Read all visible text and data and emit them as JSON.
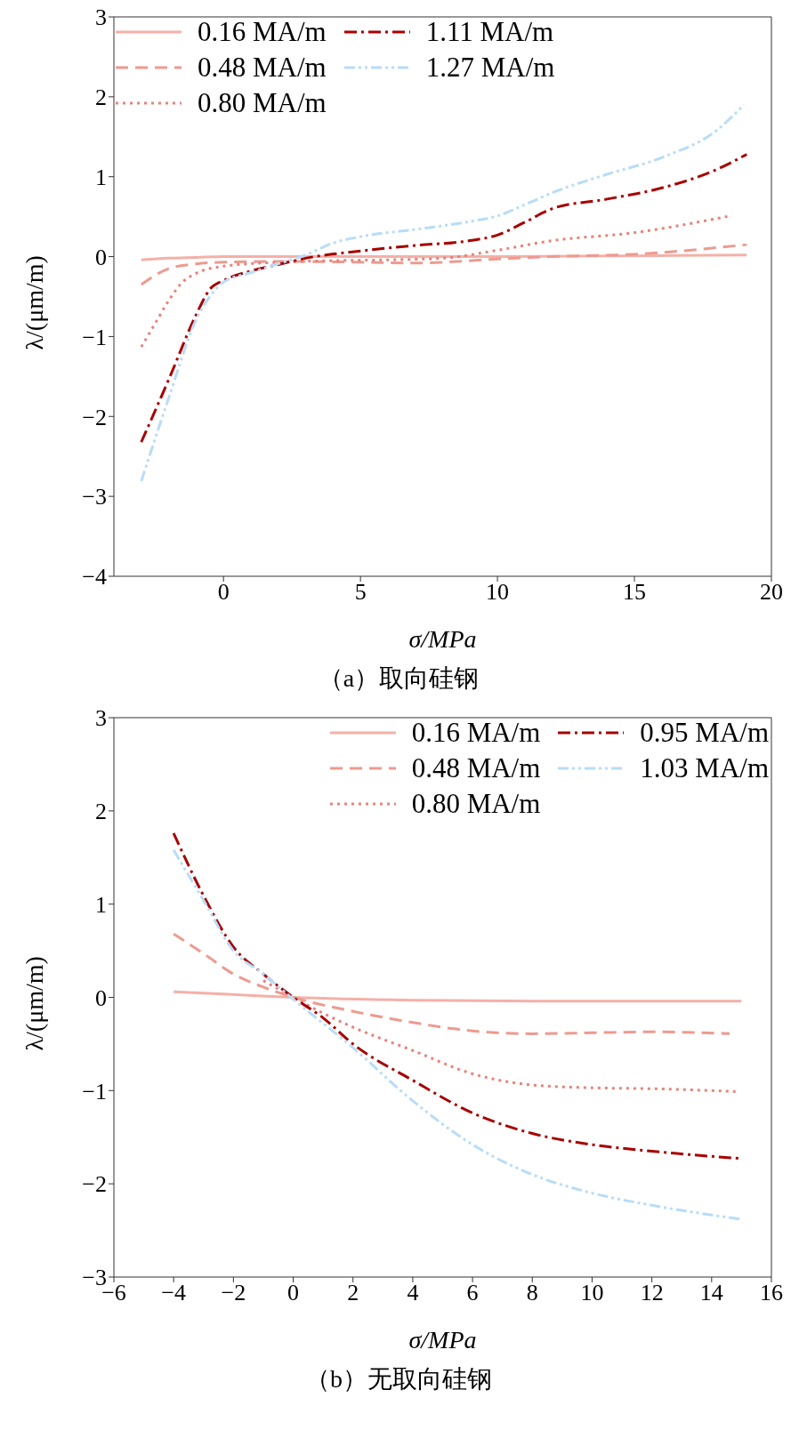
{
  "chart_data": [
    {
      "type": "line",
      "xlabel": "σ/MPa",
      "ylabel": "λ/(μm/m)",
      "annotations": [
        "（a）取向硅钢"
      ],
      "xlim": [
        -4,
        20
      ],
      "xticks": [
        0,
        5,
        10,
        15,
        20
      ],
      "ylim": [
        -4,
        3
      ],
      "yticks": [
        -4,
        -3,
        -2,
        -1,
        0,
        1,
        2,
        3
      ],
      "grid": false,
      "legend": "top left",
      "marker": "none",
      "series": [
        {
          "name": "0.16 MA/m",
          "color": "#f4b0a8",
          "line_style": "solid",
          "x": [
            -3,
            -2,
            -1,
            0,
            5,
            10,
            15,
            19.1
          ],
          "values": [
            -0.04,
            -0.02,
            -0.01,
            0,
            0,
            0,
            0.01,
            0.02
          ]
        },
        {
          "name": "0.48 MA/m",
          "color": "#ee9a90",
          "line_style": "dashed",
          "x": [
            -3,
            -2,
            -1,
            0,
            2,
            5,
            7,
            10,
            12,
            15,
            19.1
          ],
          "values": [
            -0.35,
            -0.15,
            -0.09,
            -0.07,
            -0.06,
            -0.07,
            -0.08,
            -0.03,
            0,
            0.03,
            0.15
          ]
        },
        {
          "name": "0.80 MA/m",
          "color": "#e8837a",
          "line_style": "dotted",
          "x": [
            -3,
            -2.5,
            -2,
            -1.5,
            -1,
            0,
            2,
            4,
            6,
            8,
            10,
            12,
            15,
            18.5
          ],
          "values": [
            -1.13,
            -0.84,
            -0.55,
            -0.32,
            -0.21,
            -0.12,
            -0.07,
            -0.05,
            -0.04,
            -0.02,
            0.08,
            0.2,
            0.3,
            0.51
          ]
        },
        {
          "name": "1.11 MA/m",
          "color": "#a80000",
          "line_style": "dashdot",
          "x": [
            -3,
            -2,
            -1,
            -0.5,
            0,
            1,
            2,
            3,
            5,
            7,
            9,
            10,
            11,
            12,
            14,
            16,
            18,
            19.1
          ],
          "values": [
            -2.32,
            -1.54,
            -0.73,
            -0.41,
            -0.3,
            -0.18,
            -0.1,
            -0.02,
            0.07,
            0.14,
            0.2,
            0.27,
            0.43,
            0.6,
            0.72,
            0.86,
            1.09,
            1.28
          ]
        },
        {
          "name": "1.27 MA/m",
          "color": "#b8dcf8",
          "line_style": "dashdotdot",
          "x": [
            -3,
            -2,
            -1,
            -0.5,
            0,
            1,
            2,
            3,
            4,
            5,
            7,
            9,
            10,
            11,
            12,
            14,
            16,
            18,
            19
          ],
          "values": [
            -2.81,
            -1.77,
            -0.79,
            -0.5,
            -0.32,
            -0.2,
            -0.09,
            0.02,
            0.17,
            0.25,
            0.34,
            0.44,
            0.51,
            0.65,
            0.8,
            1.03,
            1.24,
            1.58,
            1.9
          ]
        }
      ]
    },
    {
      "type": "line",
      "xlabel": "σ/MPa",
      "ylabel": "λ/(μm/m)",
      "annotations": [
        "（b）无取向硅钢"
      ],
      "xlim": [
        -6,
        16
      ],
      "xticks": [
        -6,
        -4,
        -2,
        0,
        2,
        4,
        6,
        8,
        10,
        12,
        14,
        16
      ],
      "ylim": [
        -3,
        3
      ],
      "yticks": [
        -3,
        -2,
        -1,
        0,
        1,
        2,
        3
      ],
      "grid": false,
      "legend": "top right",
      "marker": "none",
      "series": [
        {
          "name": "0.16 MA/m",
          "color": "#f4b0a8",
          "line_style": "solid",
          "x": [
            -4,
            -2,
            0,
            4,
            8,
            15
          ],
          "values": [
            0.06,
            0.03,
            0,
            -0.03,
            -0.04,
            -0.04
          ]
        },
        {
          "name": "0.48 MA/m",
          "color": "#ee9a90",
          "line_style": "dashed",
          "x": [
            -4,
            -3,
            -2,
            -1,
            0,
            2,
            4,
            6,
            8,
            10,
            12,
            14.6
          ],
          "values": [
            0.68,
            0.47,
            0.25,
            0.11,
            0,
            -0.15,
            -0.27,
            -0.36,
            -0.39,
            -0.38,
            -0.37,
            -0.39
          ]
        },
        {
          "name": "0.80 MA/m",
          "color": "#e8837a",
          "line_style": "dotted",
          "x": [
            -1,
            0,
            1,
            2,
            4,
            6,
            8,
            10,
            12,
            14.8
          ],
          "values": [
            0.18,
            0,
            -0.17,
            -0.32,
            -0.57,
            -0.82,
            -0.94,
            -0.97,
            -0.98,
            -1.01
          ]
        },
        {
          "name": "0.95 MA/m",
          "color": "#a80000",
          "line_style": "dashdot",
          "x": [
            -4,
            -3,
            -2,
            -1,
            0,
            1,
            2,
            4,
            6,
            8,
            10,
            12,
            15
          ],
          "values": [
            1.76,
            1.09,
            0.54,
            0.25,
            0,
            -0.22,
            -0.5,
            -0.89,
            -1.24,
            -1.46,
            -1.58,
            -1.65,
            -1.73
          ]
        },
        {
          "name": "1.03 MA/m",
          "color": "#b8dcf8",
          "line_style": "dashdotdot",
          "x": [
            -4,
            -3,
            -2,
            -1,
            0,
            2,
            4,
            6,
            8,
            10,
            12,
            15
          ],
          "values": [
            1.58,
            1.04,
            0.5,
            0.25,
            -0.02,
            -0.54,
            -1.11,
            -1.58,
            -1.9,
            -2.1,
            -2.23,
            -2.38
          ]
        }
      ]
    }
  ]
}
